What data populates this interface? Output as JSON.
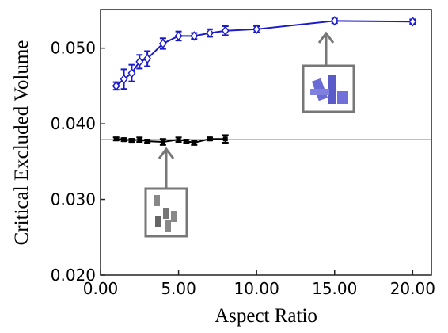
{
  "chart_data": {
    "type": "line",
    "xlabel": "Aspect Ratio",
    "ylabel": "Critical Excluded Volume",
    "xlim": [
      0,
      21.2
    ],
    "ylim": [
      0.02,
      0.0551
    ],
    "xticks": [
      {
        "value": 0,
        "label": "0.00"
      },
      {
        "value": 5,
        "label": "5.00"
      },
      {
        "value": 10,
        "label": "10.00"
      },
      {
        "value": 15,
        "label": "15.00"
      },
      {
        "value": 20,
        "label": "20.00"
      }
    ],
    "yticks": [
      {
        "value": 0.02,
        "label": "0.020"
      },
      {
        "value": 0.03,
        "label": "0.030"
      },
      {
        "value": 0.04,
        "label": "0.040"
      },
      {
        "value": 0.05,
        "label": "0.050"
      }
    ],
    "reference_line": 0.0379,
    "reference_color": "#999999",
    "series": [
      {
        "color": "#1a1acc",
        "marker": "diamond",
        "x": [
          1,
          1.5,
          2,
          2.5,
          3,
          4,
          5,
          6,
          7,
          8,
          10,
          15,
          20
        ],
        "values": [
          0.045,
          0.0459,
          0.0467,
          0.0482,
          0.0486,
          0.0506,
          0.0516,
          0.0516,
          0.052,
          0.0523,
          0.0525,
          0.0536,
          0.0535
        ],
        "errors": [
          0.0005,
          0.0013,
          0.0011,
          0.0009,
          0.001,
          0.0007,
          0.0006,
          0.0004,
          0.0005,
          0.0006,
          0.0004,
          0.0003,
          0.0003
        ]
      },
      {
        "color": "#000000",
        "marker": "square",
        "x": [
          1,
          1.5,
          2,
          2.5,
          3,
          4,
          5,
          5.5,
          6,
          7,
          8
        ],
        "values": [
          0.038,
          0.0379,
          0.0378,
          0.0379,
          0.0377,
          0.0376,
          0.0379,
          0.0377,
          0.0375,
          0.038,
          0.038
        ],
        "errors": [
          0.0002,
          0.0002,
          0.0002,
          0.0003,
          0.0002,
          0.0004,
          0.0003,
          0.0002,
          0.0003,
          0.0002,
          0.0005
        ]
      }
    ]
  }
}
